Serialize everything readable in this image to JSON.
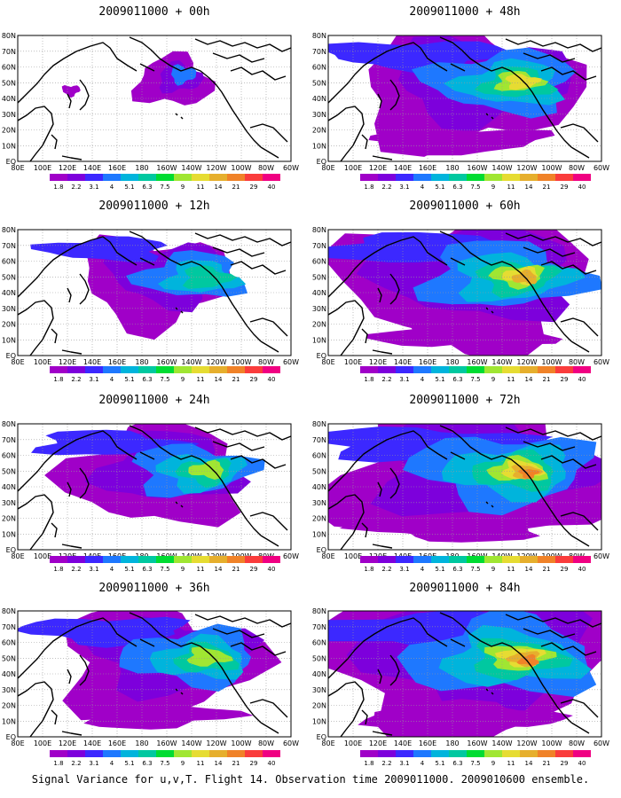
{
  "caption": "Signal Variance for u,v,T. Flight 14. Observation time 2009011000. 2009010600 ensemble.",
  "lat_labels": [
    "80N",
    "70N",
    "60N",
    "50N",
    "40N",
    "30N",
    "20N",
    "10N",
    "EQ"
  ],
  "lon_labels": [
    "80E",
    "100E",
    "120E",
    "140E",
    "160E",
    "180",
    "160W",
    "140W",
    "120W",
    "100W",
    "80W",
    "60W"
  ],
  "colorbar": {
    "labels": [
      "1.8",
      "2.2",
      "3.1",
      "4",
      "5.1",
      "6.3",
      "7.5",
      "9",
      "11",
      "14",
      "21",
      "29",
      "40"
    ],
    "colors": [
      "#a000c8",
      "#7d00dc",
      "#3c28ff",
      "#1e78ff",
      "#00b4dc",
      "#00c8a0",
      "#00dc32",
      "#a0e632",
      "#e6dc32",
      "#e6af2d",
      "#f08228",
      "#fa3c3c",
      "#f00082"
    ]
  },
  "panels": [
    {
      "title": "2009011000 + 00h",
      "level": 0,
      "id": "p00"
    },
    {
      "title": "2009011000 + 48h",
      "level": 4,
      "id": "p48"
    },
    {
      "title": "2009011000 + 12h",
      "level": 1,
      "id": "p12"
    },
    {
      "title": "2009011000 + 60h",
      "level": 5,
      "id": "p60"
    },
    {
      "title": "2009011000 + 24h",
      "level": 2,
      "id": "p24"
    },
    {
      "title": "2009011000 + 72h",
      "level": 6,
      "id": "p72"
    },
    {
      "title": "2009011000 + 36h",
      "level": 3,
      "id": "p36"
    },
    {
      "title": "2009011000 + 84h",
      "level": 7,
      "id": "p84"
    }
  ]
}
